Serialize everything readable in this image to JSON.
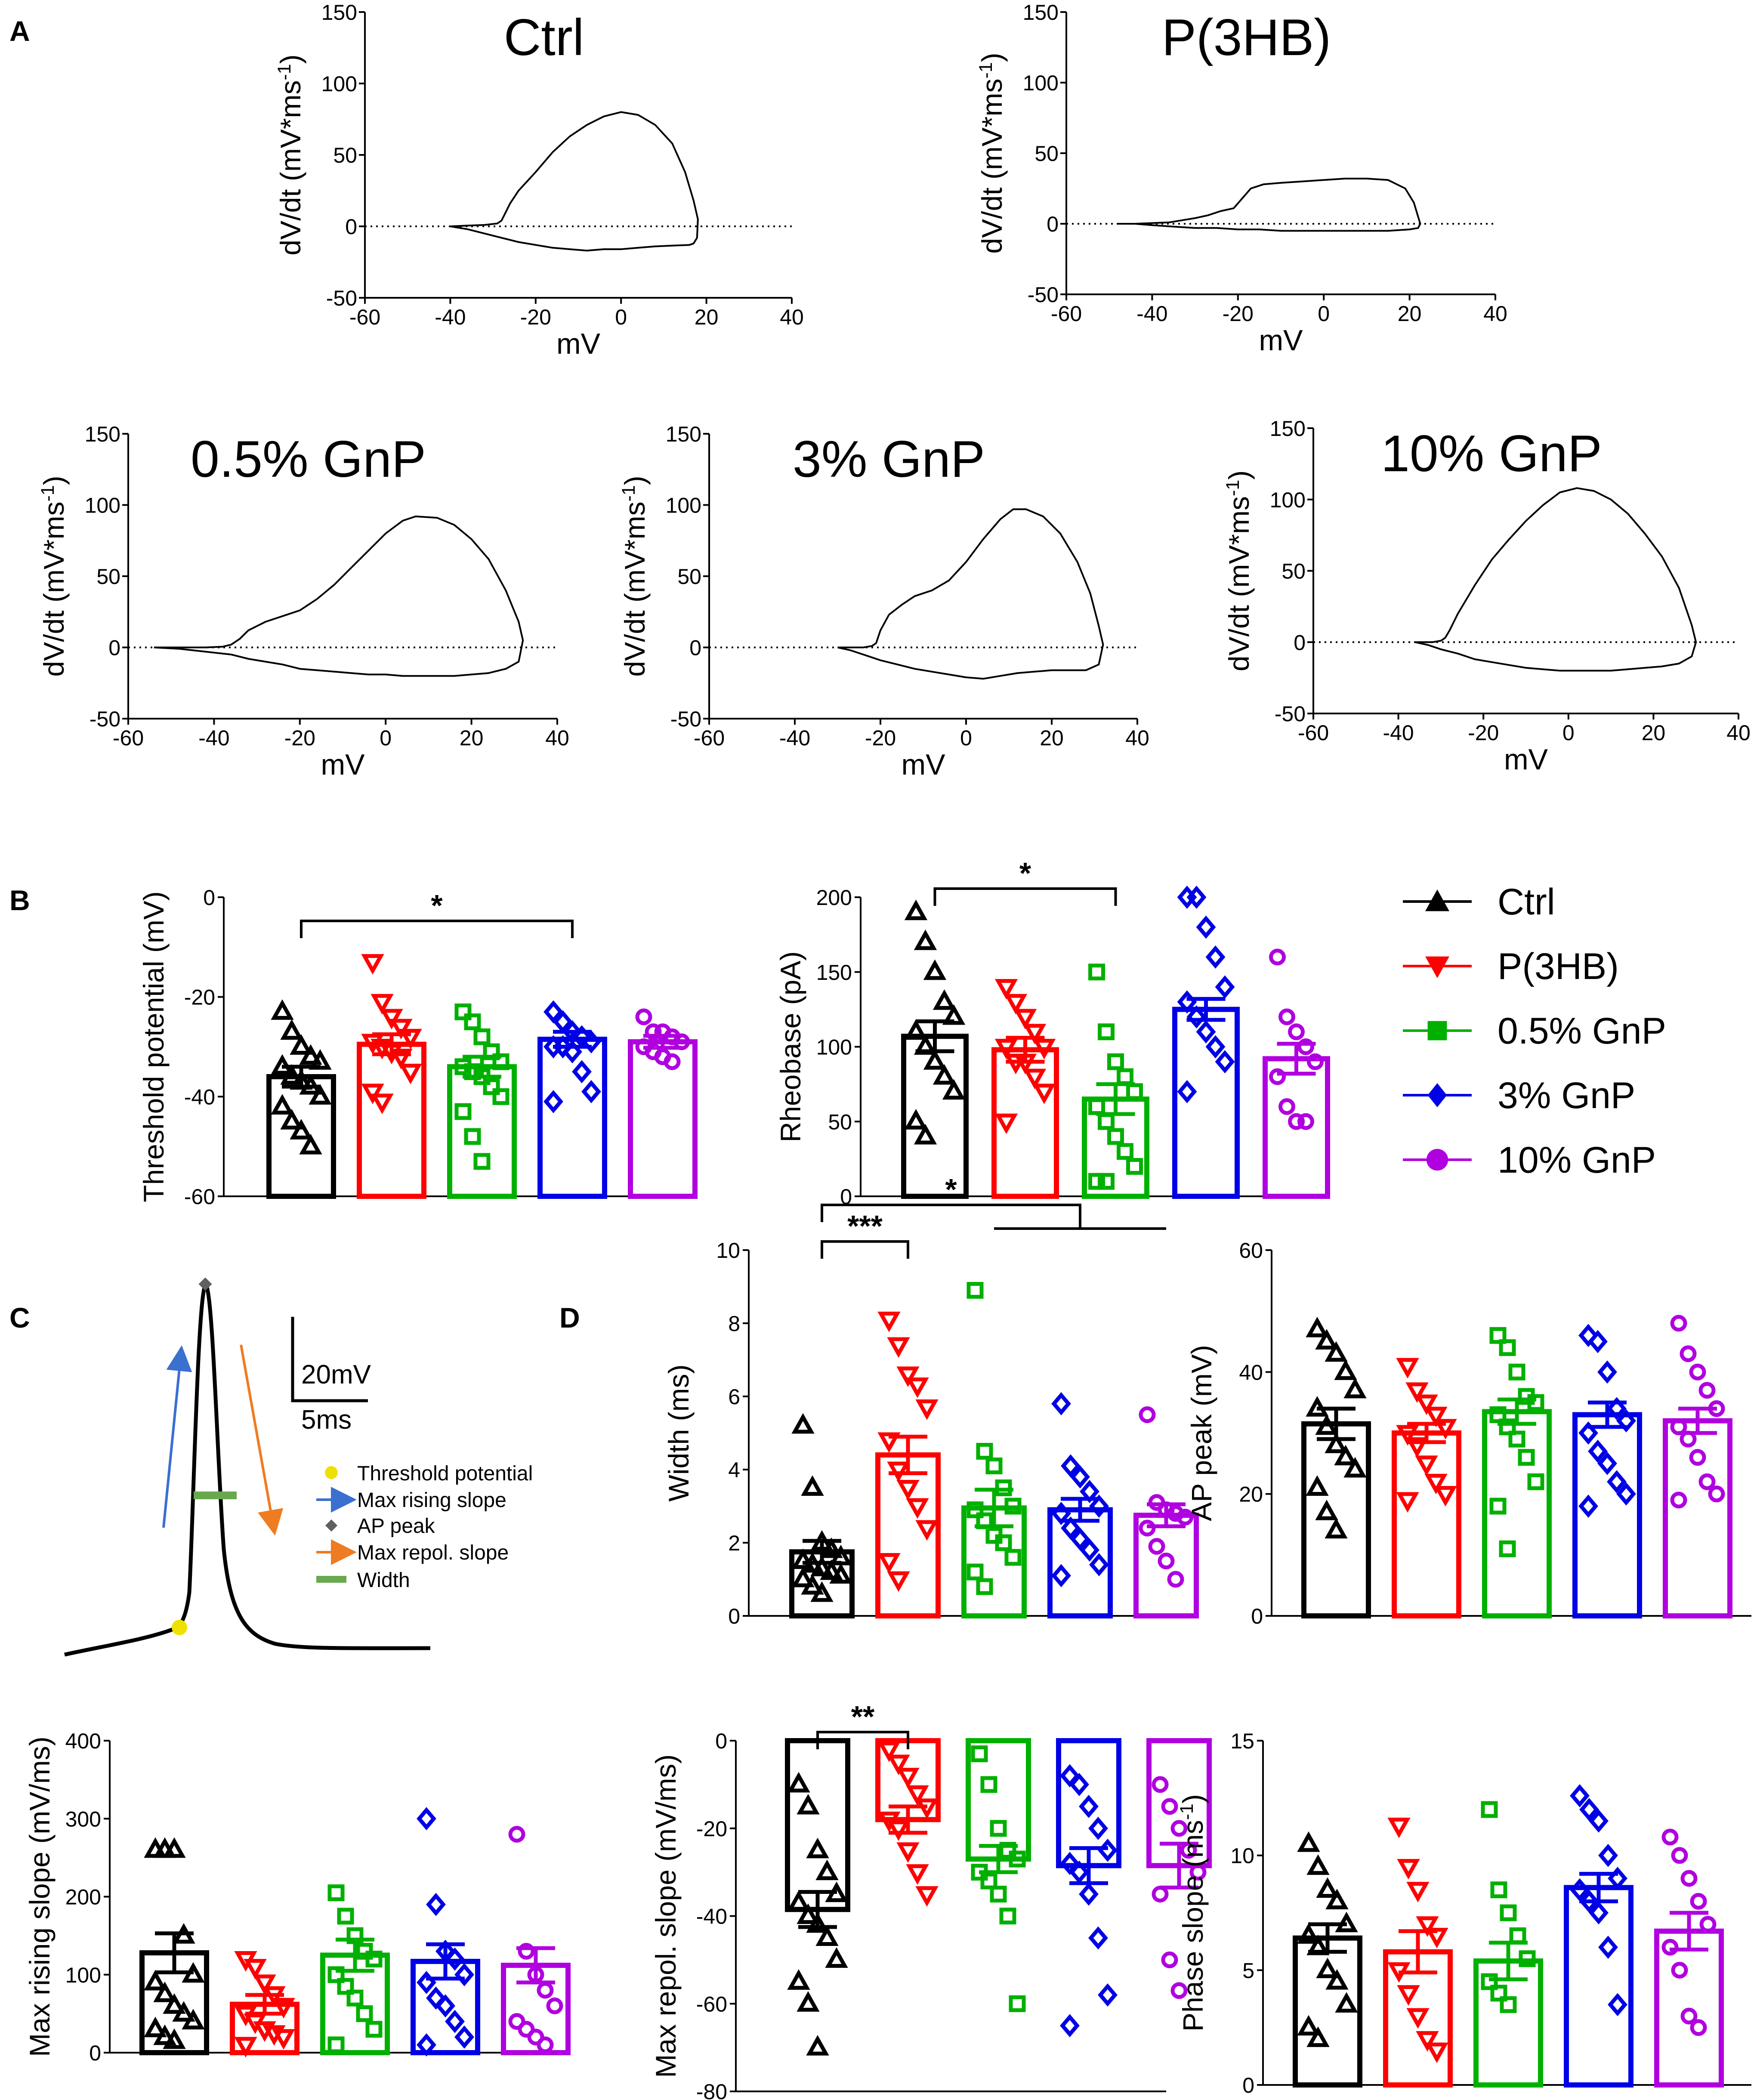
{
  "figure": {
    "colors": {
      "Ctrl": "#000000",
      "P(3HB)": "#ff0000",
      "0.5% GnP": "#00b000",
      "3% GnP": "#0000e6",
      "10% GnP": "#b000e0",
      "threshold_marker": "#f0e000",
      "rising_arrow": "#3b6fd0",
      "repol_arrow": "#ef7c22",
      "peak_marker": "#606060",
      "width_bar": "#6aa84f"
    }
  },
  "panels": {
    "A": {
      "label": "A"
    },
    "B": {
      "label": "B"
    },
    "C": {
      "label": "C"
    },
    "D": {
      "label": "D"
    },
    "legend": {
      "items": [
        {
          "name": "Ctrl",
          "shape": "triangle-up",
          "color": "#000000"
        },
        {
          "name": "P(3HB)",
          "shape": "triangle-down",
          "color": "#ff0000"
        },
        {
          "name": "0.5% GnP",
          "shape": "square",
          "color": "#00b000"
        },
        {
          "name": "3% GnP",
          "shape": "diamond",
          "color": "#0000e6"
        },
        {
          "name": "10% GnP",
          "shape": "circle",
          "color": "#b000e0"
        }
      ]
    },
    "C_schematic": {
      "scale_voltage": "20mV",
      "scale_time": "5ms",
      "legend": [
        "Threshold potential",
        "Max rising slope",
        "AP peak",
        "Max repol. slope",
        "Width"
      ]
    }
  },
  "chart_data": [
    {
      "id": "A1",
      "type": "line",
      "title": "Ctrl",
      "xlabel": "mV",
      "ylabel": "dV/dt (mV*ms",
      "ylabel_sup": "-1",
      "ylabel_end": ")",
      "xlim": [
        -60,
        40
      ],
      "ylim": [
        -50,
        150
      ],
      "xticks": [
        "-60",
        "-40",
        "-20",
        "0",
        "20",
        "40"
      ],
      "yticks": [
        "-50",
        "0",
        "50",
        "100",
        "150"
      ],
      "x": [
        -40,
        -36,
        -32,
        -29,
        -28,
        -27,
        -26,
        -24,
        -20,
        -16,
        -12,
        -8,
        -4,
        0,
        4,
        8,
        12,
        15,
        17,
        18,
        17.8,
        17,
        16,
        12,
        8,
        4,
        0,
        -4,
        -8,
        -12,
        -16,
        -20,
        -24,
        -28,
        -32,
        -36,
        -40
      ],
      "y": [
        0,
        0.5,
        1,
        2,
        4,
        10,
        16,
        25,
        38,
        52,
        63,
        71,
        77,
        80,
        78,
        71,
        58,
        38,
        18,
        5,
        -8,
        -12,
        -13,
        -13.5,
        -14,
        -15,
        -16,
        -16,
        -17,
        -16,
        -15,
        -13,
        -11,
        -8,
        -5,
        -2,
        0
      ]
    },
    {
      "id": "A2",
      "type": "line",
      "title": "P(3HB)",
      "xlabel": "mV",
      "ylabel": "dV/dt (mV*ms",
      "ylabel_sup": "-1",
      "ylabel_end": ")",
      "xlim": [
        -60,
        40
      ],
      "ylim": [
        -50,
        150
      ],
      "xticks": [
        "-60",
        "-40",
        "-20",
        "0",
        "20",
        "40"
      ],
      "yticks": [
        "-50",
        "0",
        "50",
        "100",
        "150"
      ],
      "x": [
        -48,
        -44,
        -40,
        -36,
        -32,
        -30,
        -27,
        -24,
        -21,
        -19,
        -17,
        -14,
        -10,
        -5,
        0,
        5,
        10,
        15,
        19,
        21,
        22,
        22.5,
        22,
        20,
        15,
        10,
        5,
        0,
        -5,
        -10,
        -15,
        -20,
        -25,
        -30,
        -35,
        -40,
        -44,
        -48
      ],
      "y": [
        0,
        0,
        0.5,
        1,
        3,
        4,
        6,
        9,
        11,
        18,
        25,
        28,
        29,
        30,
        31,
        32,
        32,
        31,
        25,
        15,
        5,
        0,
        -3,
        -4,
        -5,
        -5,
        -5,
        -5,
        -5,
        -5,
        -4,
        -4,
        -3,
        -3,
        -2,
        -1,
        0,
        0
      ]
    },
    {
      "id": "A3",
      "type": "line",
      "title": "0.5% GnP",
      "xlabel": "mV",
      "ylabel": "dV/dt (mV*ms",
      "ylabel_sup": "-1",
      "ylabel_end": ")",
      "xlim": [
        -60,
        40
      ],
      "ylim": [
        -50,
        150
      ],
      "xticks": [
        "-60",
        "-40",
        "-20",
        "0",
        "20",
        "40"
      ],
      "yticks": [
        "-50",
        "0",
        "50",
        "100",
        "150"
      ],
      "x": [
        -54,
        -48,
        -42,
        -38,
        -36,
        -34,
        -32,
        -28,
        -24,
        -20,
        -16,
        -12,
        -8,
        -4,
        0,
        4,
        7,
        12,
        16,
        20,
        24,
        28,
        31,
        32,
        31,
        28,
        24,
        20,
        16,
        12,
        8,
        4,
        0,
        -4,
        -8,
        -12,
        -16,
        -20,
        -24,
        -28,
        -32,
        -36,
        -42,
        -48,
        -54
      ],
      "y": [
        0,
        0,
        0,
        0.5,
        2,
        6,
        12,
        18,
        22,
        26,
        34,
        44,
        56,
        68,
        80,
        89,
        92,
        91,
        86,
        76,
        62,
        40,
        18,
        5,
        -10,
        -15,
        -18,
        -19,
        -20,
        -20,
        -20,
        -20,
        -19,
        -19,
        -18,
        -17,
        -16,
        -15,
        -12,
        -10,
        -8,
        -5,
        -3,
        -1,
        0
      ]
    },
    {
      "id": "A4",
      "type": "line",
      "title": "3% GnP",
      "xlabel": "mV",
      "ylabel": "dV/dt (mV*ms",
      "ylabel_sup": "-1",
      "ylabel_end": ")",
      "xlim": [
        -60,
        40
      ],
      "ylim": [
        -50,
        150
      ],
      "xticks": [
        "-60",
        "-40",
        "-20",
        "0",
        "20",
        "40"
      ],
      "yticks": [
        "-50",
        "0",
        "50",
        "100",
        "150"
      ],
      "x": [
        -30,
        -26,
        -24,
        -22,
        -21,
        -20,
        -18,
        -15,
        -12,
        -8,
        -4,
        0,
        4,
        8,
        11,
        14,
        18,
        22,
        26,
        29,
        31,
        32,
        31,
        28,
        24,
        20,
        16,
        12,
        8,
        4,
        0,
        -4,
        -8,
        -12,
        -16,
        -20,
        -24,
        -27,
        -30
      ],
      "y": [
        0,
        0,
        0,
        1,
        3,
        12,
        23,
        30,
        36,
        40,
        47,
        60,
        76,
        90,
        97,
        97,
        92,
        80,
        60,
        38,
        15,
        2,
        -12,
        -16,
        -16,
        -16,
        -17,
        -18,
        -20,
        -22,
        -21,
        -19,
        -17,
        -15,
        -12,
        -9,
        -5,
        -2,
        0
      ]
    },
    {
      "id": "A5",
      "type": "line",
      "title": "10% GnP",
      "xlabel": "mV",
      "ylabel": "dV/dt (mV*ms",
      "ylabel_sup": "-1",
      "ylabel_end": ")",
      "xlim": [
        -60,
        40
      ],
      "ylim": [
        -50,
        150
      ],
      "xticks": [
        "-60",
        "-40",
        "-20",
        "0",
        "20",
        "40"
      ],
      "yticks": [
        "-50",
        "0",
        "50",
        "100",
        "150"
      ],
      "x": [
        -36,
        -32,
        -30,
        -29,
        -28,
        -26,
        -22,
        -18,
        -14,
        -10,
        -6,
        -2,
        2,
        6,
        10,
        14,
        18,
        22,
        26,
        29,
        30,
        29,
        26,
        22,
        18,
        14,
        10,
        6,
        2,
        -2,
        -6,
        -10,
        -14,
        -18,
        -22,
        -26,
        -30,
        -33,
        -36
      ],
      "y": [
        0,
        0,
        1,
        3,
        8,
        20,
        40,
        58,
        72,
        85,
        96,
        105,
        108,
        106,
        100,
        90,
        76,
        60,
        38,
        12,
        0,
        -10,
        -15,
        -17,
        -18,
        -19,
        -20,
        -20,
        -20,
        -20,
        -19,
        -18,
        -16,
        -14,
        -12,
        -8,
        -5,
        -2,
        0
      ]
    },
    {
      "id": "B1",
      "type": "bar",
      "ylabel": "Threshold potential (mV)",
      "ylim": [
        -60,
        0
      ],
      "yticks": [
        "-60",
        "-40",
        "-20",
        "0"
      ],
      "categories": [
        "Ctrl",
        "P(3HB)",
        "0.5% GnP",
        "3% GnP",
        "10% GnP"
      ],
      "values": [
        -36,
        -29.5,
        -34,
        -28.5,
        -29
      ],
      "sem": [
        2,
        2,
        2,
        1.5,
        1.2
      ],
      "points": [
        [
          -23,
          -27,
          -30,
          -32,
          -33,
          -34,
          -36,
          -37,
          -38,
          -40,
          -42,
          -45,
          -47,
          -50
        ],
        [
          -13,
          -21,
          -24,
          -26,
          -28,
          -29,
          -30,
          -31,
          -32,
          -35,
          -39,
          -41
        ],
        [
          -23,
          -25,
          -28,
          -31,
          -33,
          -34,
          -35,
          -36,
          -38,
          -40,
          -43,
          -48,
          -53
        ],
        [
          -23,
          -25,
          -27,
          -28,
          -29,
          -30,
          -30,
          -31,
          -35,
          -39,
          -41
        ],
        [
          -24,
          -27,
          -27,
          -28,
          -29,
          -30,
          -31,
          -32,
          -33
        ]
      ],
      "annotations": [
        {
          "text": "*",
          "from": "Ctrl",
          "to": "3% GnP"
        }
      ]
    },
    {
      "id": "B2",
      "type": "bar",
      "ylabel": "Rheobase (pA)",
      "ylim": [
        0,
        200
      ],
      "yticks": [
        "0",
        "50",
        "100",
        "150",
        "200"
      ],
      "categories": [
        "Ctrl",
        "P(3HB)",
        "0.5% GnP",
        "3% GnP",
        "10% GnP"
      ],
      "values": [
        107,
        98,
        65,
        125,
        92
      ],
      "sem": [
        10,
        8,
        10,
        7,
        10
      ],
      "points": [
        [
          190,
          170,
          150,
          130,
          120,
          110,
          100,
          90,
          80,
          70,
          50,
          40
        ],
        [
          140,
          130,
          120,
          110,
          100,
          100,
          90,
          90,
          80,
          70,
          50
        ],
        [
          150,
          110,
          90,
          80,
          70,
          60,
          50,
          40,
          30,
          20,
          10,
          10
        ],
        [
          200,
          200,
          180,
          160,
          140,
          130,
          120,
          110,
          100,
          90,
          70
        ],
        [
          160,
          120,
          110,
          100,
          90,
          80,
          60,
          50,
          50
        ]
      ],
      "annotations": [
        {
          "text": "*",
          "from": "Ctrl",
          "to": "0.5% GnP"
        }
      ]
    },
    {
      "id": "D1",
      "type": "bar",
      "ylabel": "Width (ms)",
      "ylim": [
        0,
        10
      ],
      "yticks": [
        "0",
        "2",
        "4",
        "6",
        "8",
        "10"
      ],
      "categories": [
        "Ctrl",
        "P(3HB)",
        "0.5% GnP",
        "3% GnP",
        "10% GnP"
      ],
      "values": [
        1.75,
        4.4,
        2.95,
        2.9,
        2.75
      ],
      "sem": [
        0.3,
        0.5,
        0.5,
        0.3,
        0.3
      ],
      "points": [
        [
          5.2,
          3.5,
          2,
          1.8,
          1.6,
          1.5,
          1.4,
          1.3,
          1.2,
          1.1,
          1,
          0.8,
          0.6
        ],
        [
          8.1,
          7.4,
          6.6,
          6.3,
          5.7,
          4.8,
          4,
          3.5,
          3,
          2.4,
          1.5,
          1
        ],
        [
          8.9,
          4.5,
          4.1,
          3.5,
          3,
          2.9,
          2.6,
          2.2,
          2,
          1.6,
          1.2,
          0.8
        ],
        [
          5.8,
          4.1,
          3.8,
          3.4,
          3,
          2.8,
          2.4,
          2.1,
          1.8,
          1.4,
          1.1
        ],
        [
          5.5,
          3.1,
          2.9,
          2.8,
          2.7,
          2.4,
          1.9,
          1.5,
          1
        ]
      ],
      "annotations": [
        {
          "text": "***",
          "from": "Ctrl",
          "to": "P(3HB)"
        },
        {
          "text": "*",
          "from": "Ctrl",
          "to": "3% GnP / 0.5% GnP–10% GnP"
        }
      ]
    },
    {
      "id": "D2",
      "type": "bar",
      "ylabel": "AP peak (mV)",
      "ylim": [
        0,
        60
      ],
      "yticks": [
        "0",
        "20",
        "40",
        "60"
      ],
      "categories": [
        "Ctrl",
        "P(3HB)",
        "0.5% GnP",
        "3% GnP",
        "10% GnP"
      ],
      "values": [
        31.5,
        30,
        33.5,
        33,
        32
      ],
      "sem": [
        2.5,
        1.5,
        2,
        2,
        2
      ],
      "points": [
        [
          47,
          45,
          43,
          40,
          37,
          34,
          31,
          28,
          26,
          24,
          21,
          17,
          14
        ],
        [
          41,
          37,
          35,
          33,
          31,
          30,
          28,
          25,
          22,
          20,
          19
        ],
        [
          46,
          44,
          40,
          36,
          35,
          33,
          31,
          29,
          26,
          22,
          18,
          11
        ],
        [
          46,
          45,
          40,
          34,
          32,
          30,
          27,
          25,
          22,
          20,
          18
        ],
        [
          48,
          43,
          40,
          37,
          34,
          31,
          29,
          26,
          22,
          20,
          19
        ]
      ]
    },
    {
      "id": "D3",
      "type": "bar",
      "ylabel": "Max rising slope (mV/ms)",
      "ylim": [
        0,
        400
      ],
      "yticks": [
        "0",
        "100",
        "200",
        "300",
        "400"
      ],
      "categories": [
        "Ctrl",
        "P(3HB)",
        "0.5% GnP",
        "3% GnP",
        "10% GnP"
      ],
      "values": [
        128,
        62,
        125,
        117,
        112
      ],
      "sem": [
        25,
        12,
        20,
        22,
        22
      ],
      "points": [
        [
          260,
          260,
          260,
          150,
          100,
          90,
          75,
          60,
          50,
          40,
          30,
          20,
          15
        ],
        [
          120,
          110,
          90,
          75,
          60,
          50,
          40,
          30,
          25,
          20,
          10
        ],
        [
          205,
          175,
          150,
          130,
          120,
          100,
          85,
          70,
          50,
          30,
          10
        ],
        [
          300,
          190,
          130,
          120,
          100,
          90,
          70,
          60,
          40,
          20,
          10
        ],
        [
          280,
          130,
          100,
          80,
          60,
          40,
          30,
          20,
          10
        ]
      ]
    },
    {
      "id": "D4",
      "type": "bar",
      "ylabel": "Max repol. slope (mV/ms)",
      "ylim": [
        -80,
        0
      ],
      "yticks": [
        "-80",
        "-60",
        "-40",
        "-20",
        "0"
      ],
      "categories": [
        "Ctrl",
        "P(3HB)",
        "0.5% GnP",
        "3% GnP",
        "10% GnP"
      ],
      "values": [
        -38.5,
        -18,
        -27,
        -28.5,
        -28.5
      ],
      "sem": [
        4,
        3,
        3,
        4,
        5
      ],
      "points": [
        [
          -10,
          -15,
          -25,
          -30,
          -35,
          -37,
          -40,
          -42,
          -45,
          -50,
          -55,
          -60,
          -70
        ],
        [
          -2,
          -5,
          -8,
          -12,
          -15,
          -18,
          -20,
          -25,
          -30,
          -35
        ],
        [
          -3,
          -10,
          -20,
          -25,
          -27,
          -30,
          -32,
          -35,
          -40,
          -60
        ],
        [
          -8,
          -10,
          -15,
          -20,
          -25,
          -28,
          -30,
          -35,
          -45,
          -58,
          -65
        ],
        [
          -10,
          -15,
          -20,
          -25,
          -30,
          -35,
          -50,
          -57
        ]
      ],
      "annotations": [
        {
          "text": "**",
          "from": "Ctrl",
          "to": "P(3HB)"
        }
      ]
    },
    {
      "id": "D5",
      "type": "bar",
      "ylabel": "Phase slope (ms",
      "ylabel_sup": "-1",
      "ylabel_end": ")",
      "ylim": [
        0,
        15
      ],
      "yticks": [
        "0",
        "5",
        "10",
        "15"
      ],
      "categories": [
        "Ctrl",
        "P(3HB)",
        "0.5% GnP",
        "3% GnP",
        "10% GnP"
      ],
      "values": [
        6.4,
        5.8,
        5.4,
        8.6,
        6.7
      ],
      "sem": [
        0.6,
        0.9,
        0.8,
        0.6,
        0.8
      ],
      "points": [
        [
          10.5,
          9.5,
          8.5,
          8,
          7,
          6.5,
          6,
          5,
          4.5,
          3.5,
          2.5,
          2
        ],
        [
          11.3,
          9.5,
          8.5,
          7,
          6.5,
          5,
          4,
          3,
          2,
          1.5
        ],
        [
          12,
          8.5,
          7.5,
          6.5,
          5.5,
          4.5,
          4,
          3.5
        ],
        [
          12.6,
          12,
          11.5,
          10,
          9,
          8.5,
          8,
          7.5,
          6,
          3.5
        ],
        [
          10.8,
          10,
          9,
          8,
          7,
          6,
          5,
          3,
          2.5
        ]
      ]
    }
  ]
}
